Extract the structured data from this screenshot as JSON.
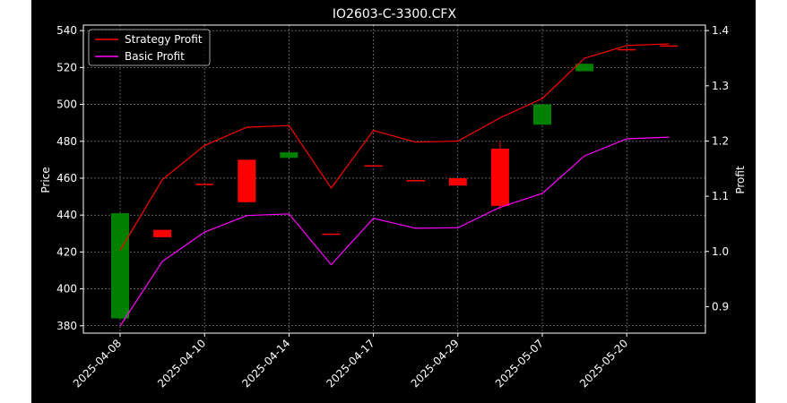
{
  "chart_data": {
    "type": "candlestick+line",
    "title": "IO2603-C-3300.CFX",
    "ylabel_left": "Price",
    "ylabel_right": "Profit",
    "xlabel": "",
    "grid": true,
    "legend_position": "top-left",
    "background": "#000000",
    "y_left_ticks": [
      380,
      400,
      420,
      440,
      460,
      480,
      500,
      520,
      540
    ],
    "y_right_ticks": [
      "0.9",
      "1.0",
      "1.1",
      "1.2",
      "1.3",
      "1.4"
    ],
    "y_left_range": [
      376,
      543
    ],
    "y_right_range": [
      0.852,
      1.41
    ],
    "x_tick_labels": [
      "2025-04-08",
      "2025-04-10",
      "2025-04-14",
      "2025-04-17",
      "2025-04-29",
      "2025-05-07",
      "2025-05-20"
    ],
    "x_tick_index": [
      0,
      2,
      4,
      6,
      8,
      10,
      12
    ],
    "candles": [
      {
        "open": 384,
        "close": 441,
        "high": 441,
        "low": 383,
        "color": "#008000"
      },
      {
        "open": 432,
        "close": 428,
        "high": 432,
        "low": 428,
        "color": "#ff0000"
      },
      {
        "open": 457,
        "close": 457,
        "high": 457,
        "low": 457,
        "color": "#ff0000"
      },
      {
        "open": 470,
        "close": 447,
        "high": 470,
        "low": 447,
        "color": "#ff0000"
      },
      {
        "open": 471,
        "close": 474,
        "high": 474,
        "low": 471,
        "color": "#008000"
      },
      {
        "open": 430,
        "close": 430,
        "high": 430,
        "low": 430,
        "color": "#ff0000"
      },
      {
        "open": 467,
        "close": 467,
        "high": 467,
        "low": 467,
        "color": "#ff0000"
      },
      {
        "open": 459,
        "close": 459,
        "high": 459,
        "low": 459,
        "color": "#ff0000"
      },
      {
        "open": 460,
        "close": 456,
        "high": 460,
        "low": 456,
        "color": "#ff0000"
      },
      {
        "open": 476,
        "close": 445,
        "high": 480,
        "low": 443,
        "color": "#ff0000"
      },
      {
        "open": 489,
        "close": 500,
        "high": 500,
        "low": 489,
        "color": "#008000"
      },
      {
        "open": 518,
        "close": 522,
        "high": 522,
        "low": 518,
        "color": "#008000"
      },
      {
        "open": 530,
        "close": 530,
        "high": 530,
        "low": 530,
        "color": "#ff0000"
      },
      {
        "open": 532,
        "close": 532,
        "high": 532,
        "low": 532,
        "color": "#ff0000"
      }
    ],
    "series": [
      {
        "name": "Strategy Profit",
        "color": "#ff0000",
        "values": [
          1.002,
          1.13,
          1.192,
          1.225,
          1.228,
          1.115,
          1.219,
          1.198,
          1.2,
          1.242,
          1.277,
          1.35,
          1.373,
          1.376
        ]
      },
      {
        "name": "Basic Profit",
        "color": "#ff00ff",
        "values": [
          0.865,
          0.982,
          1.035,
          1.065,
          1.068,
          0.976,
          1.06,
          1.042,
          1.043,
          1.08,
          1.105,
          1.173,
          1.204,
          1.207
        ]
      }
    ]
  }
}
